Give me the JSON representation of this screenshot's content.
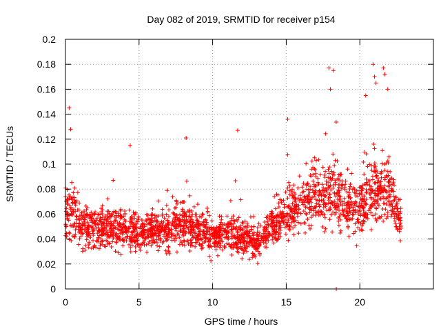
{
  "chart_data": {
    "type": "scatter",
    "title": "Day 082 of 2019, SRMTID for receiver p154",
    "xlabel": "GPS time / hours",
    "ylabel": "SRMTID / TECUs",
    "xlim": [
      0,
      25
    ],
    "ylim": [
      0,
      0.2
    ],
    "xticks": [
      0,
      5,
      10,
      15,
      20
    ],
    "xtick_labels": [
      "0",
      "5",
      "10",
      "15",
      "20"
    ],
    "yticks": [
      0,
      0.02,
      0.04,
      0.06,
      0.08,
      0.1,
      0.12,
      0.14,
      0.16,
      0.18,
      0.2
    ],
    "ytick_labels": [
      "0",
      "0.02",
      "0.04",
      "0.06",
      "0.08",
      "0.1",
      "0.12",
      "0.14",
      "0.16",
      "0.18",
      "0.2"
    ],
    "grid": true,
    "marker": "+",
    "color": "#ff0000",
    "series": [
      {
        "name": "SRMTID",
        "envelope": [
          {
            "x": 0.0,
            "mean": 0.058,
            "spread": 0.025
          },
          {
            "x": 0.5,
            "mean": 0.062,
            "spread": 0.03
          },
          {
            "x": 1.0,
            "mean": 0.05,
            "spread": 0.022
          },
          {
            "x": 2.0,
            "mean": 0.048,
            "spread": 0.022
          },
          {
            "x": 3.0,
            "mean": 0.05,
            "spread": 0.022
          },
          {
            "x": 4.0,
            "mean": 0.048,
            "spread": 0.022
          },
          {
            "x": 5.0,
            "mean": 0.044,
            "spread": 0.02
          },
          {
            "x": 6.0,
            "mean": 0.048,
            "spread": 0.02
          },
          {
            "x": 7.0,
            "mean": 0.048,
            "spread": 0.02
          },
          {
            "x": 8.0,
            "mean": 0.052,
            "spread": 0.024
          },
          {
            "x": 9.0,
            "mean": 0.046,
            "spread": 0.02
          },
          {
            "x": 10.0,
            "mean": 0.04,
            "spread": 0.018
          },
          {
            "x": 11.0,
            "mean": 0.044,
            "spread": 0.02
          },
          {
            "x": 12.0,
            "mean": 0.042,
            "spread": 0.018
          },
          {
            "x": 13.0,
            "mean": 0.036,
            "spread": 0.014
          },
          {
            "x": 14.0,
            "mean": 0.05,
            "spread": 0.018
          },
          {
            "x": 15.0,
            "mean": 0.06,
            "spread": 0.022
          },
          {
            "x": 16.0,
            "mean": 0.068,
            "spread": 0.025
          },
          {
            "x": 17.0,
            "mean": 0.074,
            "spread": 0.028
          },
          {
            "x": 18.0,
            "mean": 0.078,
            "spread": 0.032
          },
          {
            "x": 19.0,
            "mean": 0.068,
            "spread": 0.03
          },
          {
            "x": 20.0,
            "mean": 0.064,
            "spread": 0.03
          },
          {
            "x": 21.0,
            "mean": 0.08,
            "spread": 0.035
          },
          {
            "x": 22.0,
            "mean": 0.078,
            "spread": 0.032
          },
          {
            "x": 22.8,
            "mean": 0.052,
            "spread": 0.018
          }
        ],
        "point_count": 2300,
        "x_range": [
          0,
          22.8
        ],
        "outliers": [
          {
            "x": 0.25,
            "y": 0.145
          },
          {
            "x": 0.35,
            "y": 0.128
          },
          {
            "x": 4.4,
            "y": 0.115
          },
          {
            "x": 8.2,
            "y": 0.121
          },
          {
            "x": 11.7,
            "y": 0.127
          },
          {
            "x": 15.1,
            "y": 0.136
          },
          {
            "x": 17.9,
            "y": 0.177
          },
          {
            "x": 18.2,
            "y": 0.175
          },
          {
            "x": 18.0,
            "y": 0.16
          },
          {
            "x": 20.4,
            "y": 0.155
          },
          {
            "x": 20.9,
            "y": 0.18
          },
          {
            "x": 21.0,
            "y": 0.17
          },
          {
            "x": 21.6,
            "y": 0.177
          },
          {
            "x": 21.7,
            "y": 0.172
          },
          {
            "x": 21.9,
            "y": 0.16
          },
          {
            "x": 21.1,
            "y": 0.165
          },
          {
            "x": 18.4,
            "y": 0.0
          }
        ]
      }
    ]
  }
}
